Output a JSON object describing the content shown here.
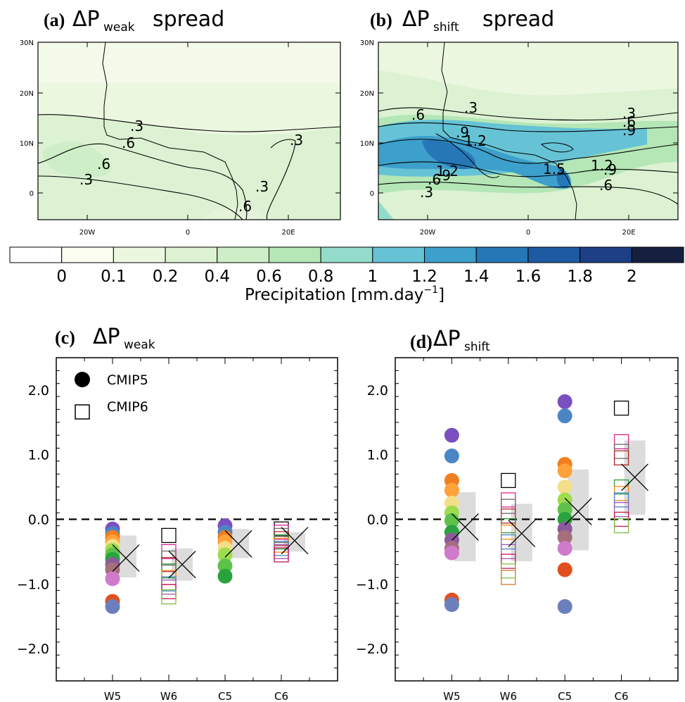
{
  "panel_a": {
    "letter": "(a)",
    "delta": "ΔP",
    "sub": "weak",
    "suffix": "spread"
  },
  "panel_b": {
    "letter": "(b)",
    "delta": "ΔP",
    "sub": "shift",
    "suffix": "spread"
  },
  "panel_c": {
    "letter": "(c)",
    "delta": "ΔP",
    "sub": "weak"
  },
  "panel_d": {
    "letter": "(d)",
    "delta": "ΔP",
    "sub": "shift"
  },
  "map_axes": {
    "lat_ticks": [
      "30N",
      "20N",
      "10N",
      "0"
    ],
    "lon_ticks": [
      "20W",
      "0",
      "20E"
    ]
  },
  "contour_labels_a": [
    ".3",
    ".6",
    ".6",
    ".3",
    ".3",
    ".3",
    ".6"
  ],
  "contour_labels_b": [
    ".6",
    ".3",
    ".3",
    ".6",
    ".9",
    ".9",
    "1.2",
    "1.2",
    "1.5",
    "1.2",
    ".9",
    ".6",
    ".6",
    ".9",
    ".3"
  ],
  "colorbar": {
    "tick_labels": [
      "0",
      "0.1",
      "0.2",
      "0.4",
      "0.6",
      "0.8",
      "1",
      "1.2",
      "1.4",
      "1.6",
      "1.8",
      "2"
    ],
    "colors": [
      "#ffffff",
      "#fbfdf0",
      "#ecf7e0",
      "#dcf2d2",
      "#cdeec6",
      "#b4e6b6",
      "#93dccb",
      "#66c3d6",
      "#3d9fcb",
      "#2577b6",
      "#1d5aa2",
      "#1c3f86",
      "#151f3f"
    ],
    "label": "Precipitation [mm.day",
    "label_sup": "−1",
    "label_end": "]"
  },
  "legend": {
    "cmip5": "CMIP5",
    "cmip6": "CMIP6"
  },
  "chart_data": [
    {
      "type": "scatter",
      "panel": "c",
      "categories": [
        "W5",
        "W6",
        "C5",
        "C6"
      ],
      "ylim": [
        -2.5,
        2.5
      ],
      "yticks": [
        "2.0",
        "1.0",
        "0.0",
        "−1.0",
        "−2.0"
      ],
      "ytick_values": [
        2,
        1,
        0,
        -1,
        -2
      ],
      "reference_line": 0,
      "cmip5": {
        "W5": [
          -0.15,
          -0.22,
          -0.28,
          -0.35,
          -0.42,
          -0.48,
          -0.55,
          -0.62,
          -0.7,
          -0.78,
          -0.92,
          -1.27,
          -1.35
        ],
        "C5": [
          -0.1,
          -0.2,
          -0.28,
          -0.35,
          -0.45,
          -0.55,
          -0.72,
          -0.88
        ]
      },
      "cmip6": {
        "W6": [
          -0.25,
          -0.5,
          -0.6,
          -0.7,
          -0.8,
          -0.9,
          -1.0,
          -1.05,
          -1.12,
          -1.2
        ],
        "C6": [
          -0.15,
          -0.2,
          -0.25,
          -0.3,
          -0.35,
          -0.4,
          -0.45,
          -0.5,
          -0.55
        ]
      },
      "ensemble_mean": {
        "W5": -0.6,
        "W6": -0.7,
        "C5": -0.38,
        "C6": -0.33
      },
      "spread_range": {
        "W5": [
          -0.9,
          -0.25
        ],
        "W6": [
          -0.95,
          -0.45
        ],
        "C5": [
          -0.6,
          -0.15
        ],
        "C6": [
          -0.5,
          -0.2
        ]
      }
    },
    {
      "type": "scatter",
      "panel": "d",
      "categories": [
        "W5",
        "W6",
        "C5",
        "C6"
      ],
      "ylim": [
        -2.5,
        2.5
      ],
      "yticks": [
        "2.0",
        "1.0",
        "0.0",
        "−1.0",
        "−2.0"
      ],
      "ytick_values": [
        2,
        1,
        0,
        -1,
        -2
      ],
      "reference_line": 0,
      "cmip5": {
        "W5": [
          1.3,
          0.98,
          0.6,
          0.45,
          0.25,
          0.1,
          -0.02,
          -0.2,
          -0.32,
          -0.45,
          -0.52,
          -1.25,
          -1.32
        ],
        "C5": [
          1.82,
          1.6,
          0.85,
          0.75,
          0.5,
          0.3,
          0.15,
          0.0,
          -0.15,
          -0.28,
          -0.45,
          -0.78,
          -1.35
        ]
      },
      "cmip6": {
        "W6": [
          0.6,
          0.3,
          0.2,
          0.05,
          -0.1,
          -0.2,
          -0.35,
          -0.5,
          -0.65,
          -0.8,
          -0.9
        ],
        "C6": [
          1.72,
          1.2,
          1.05,
          0.95,
          0.5,
          0.4,
          0.3,
          0.15,
          0.0,
          -0.1
        ]
      },
      "ensemble_mean": {
        "W5": -0.12,
        "W6": -0.22,
        "C5": 0.12,
        "C6": 0.65
      },
      "spread_range": {
        "W5": [
          -0.65,
          0.42
        ],
        "W6": [
          -0.65,
          0.24
        ],
        "C5": [
          -0.48,
          0.77
        ],
        "C6": [
          0.07,
          1.22
        ]
      }
    }
  ],
  "palette": {
    "cmip5": [
      "#7a4fbf",
      "#4a86c6",
      "#f07f1f",
      "#ffa23a",
      "#f3df88",
      "#9edc4e",
      "#5ec24a",
      "#2aa33e",
      "#8c5a9c",
      "#a66f7c",
      "#d07acc",
      "#e24f1f",
      "#6c7fbd",
      "#c08048",
      "#2b6cb8"
    ],
    "cmip6": [
      "#000000",
      "#d9258e",
      "#6a6a6a",
      "#b22a2a",
      "#2e9a3a",
      "#ff8c1a",
      "#4a86c6",
      "#9b59b6",
      "#c2185b",
      "#7fbf3f",
      "#d87a2a"
    ],
    "spread_box": "#dcdcdc"
  }
}
